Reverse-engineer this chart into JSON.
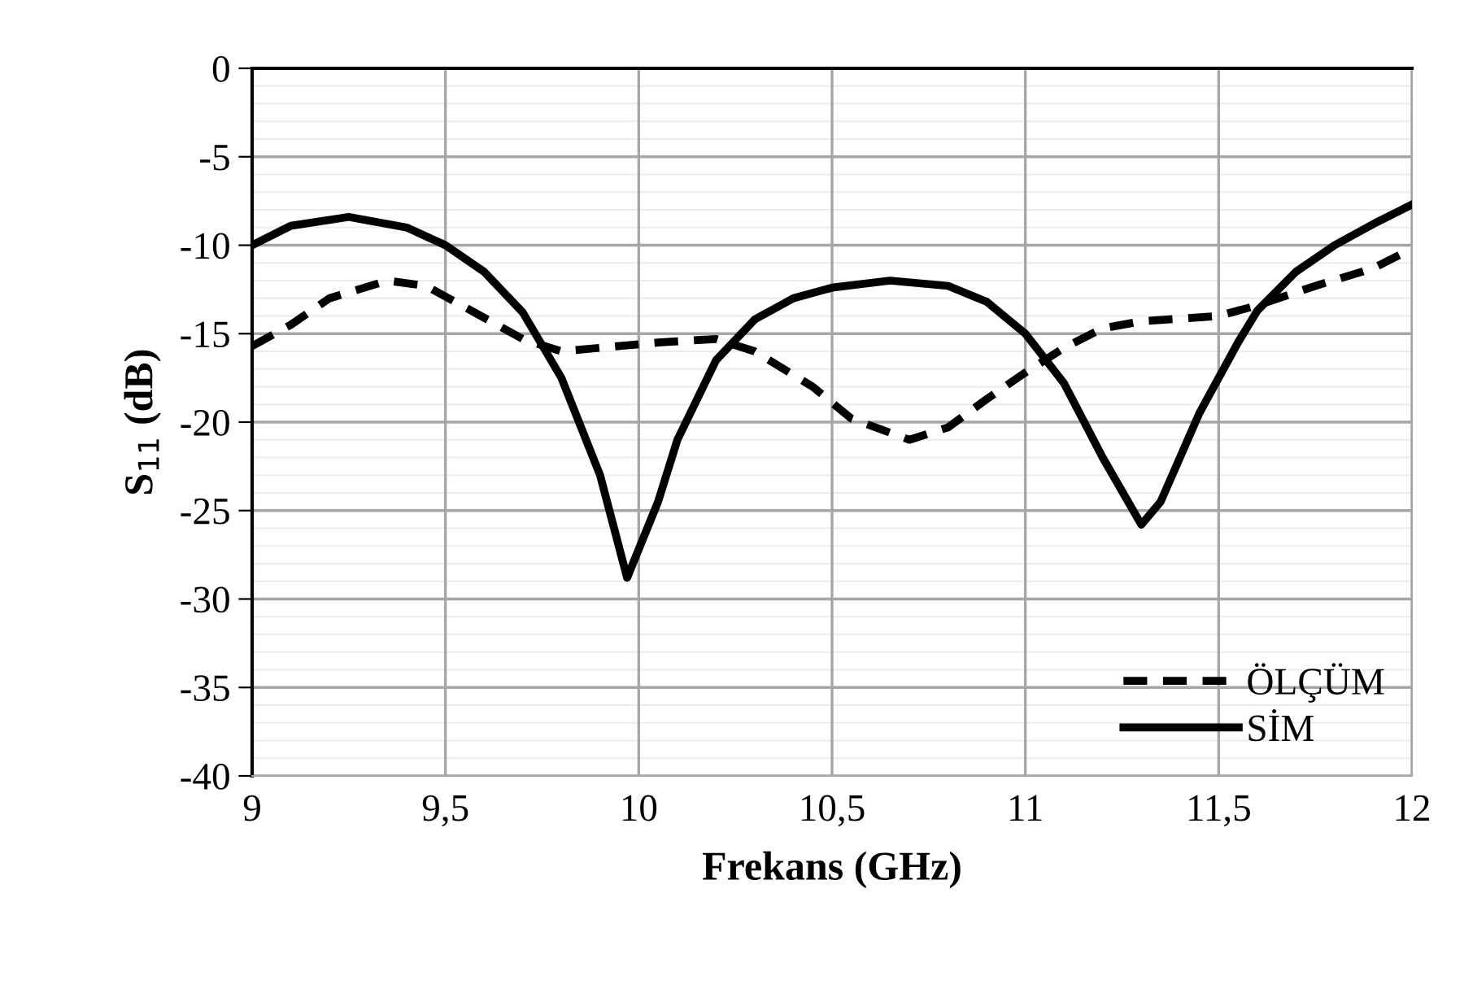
{
  "chart_data": {
    "type": "line",
    "xlabel": "Frekans (GHz)",
    "ylabel": "S$_{11}$ (dB)",
    "xlim": [
      9,
      12
    ],
    "ylim": [
      -40,
      0
    ],
    "xticks": [
      9,
      {
        "value": 9.5,
        "label": "9,5"
      },
      10,
      {
        "value": 10.5,
        "label": "10,5"
      },
      11,
      {
        "value": 11.5,
        "label": "11,5"
      },
      12
    ],
    "yticks": [
      -40,
      -35,
      -30,
      -25,
      -20,
      -15,
      -10,
      -5,
      0
    ],
    "grid": true,
    "legend": "bottom right",
    "marker": "none",
    "series": [
      {
        "name": "ÖLÇÜM",
        "color": "#000000",
        "line_style": "dashed",
        "x": [
          9,
          9.1,
          9.2,
          9.35,
          9.45,
          9.55,
          9.7,
          9.8,
          9.9,
          10.05,
          10.2,
          10.3,
          10.45,
          10.55,
          10.7,
          10.8,
          10.9,
          11.0,
          11.1,
          11.2,
          11.3,
          11.5,
          11.6,
          11.75,
          11.9,
          12
        ],
        "values": [
          -15.7,
          -14.5,
          -13,
          -12,
          -12.3,
          -13.5,
          -15.3,
          -16,
          -15.8,
          -15.5,
          -15.3,
          -16,
          -18,
          -19.8,
          -21,
          -20.3,
          -18.7,
          -17.2,
          -15.8,
          -14.7,
          -14.3,
          -14,
          -13.4,
          -12.3,
          -11.3,
          -10.2
        ]
      },
      {
        "name": "SİM",
        "color": "#000000",
        "line_style": "solid",
        "x": [
          9,
          9.1,
          9.25,
          9.4,
          9.5,
          9.6,
          9.7,
          9.8,
          9.9,
          9.97,
          10.05,
          10.1,
          10.2,
          10.3,
          10.4,
          10.5,
          10.65,
          10.8,
          10.9,
          11.0,
          11.1,
          11.2,
          11.3,
          11.35,
          11.45,
          11.55,
          11.6,
          11.7,
          11.8,
          11.9,
          12
        ],
        "values": [
          -10,
          -8.9,
          -8.4,
          -9,
          -10,
          -11.5,
          -13.8,
          -17.5,
          -23,
          -28.8,
          -24.5,
          -21,
          -16.5,
          -14.2,
          -13,
          -12.4,
          -12,
          -12.3,
          -13.2,
          -15,
          -17.8,
          -22,
          -25.8,
          -24.5,
          -19.5,
          -15.5,
          -13.7,
          -11.5,
          -10,
          -8.8,
          -7.7
        ]
      }
    ]
  }
}
